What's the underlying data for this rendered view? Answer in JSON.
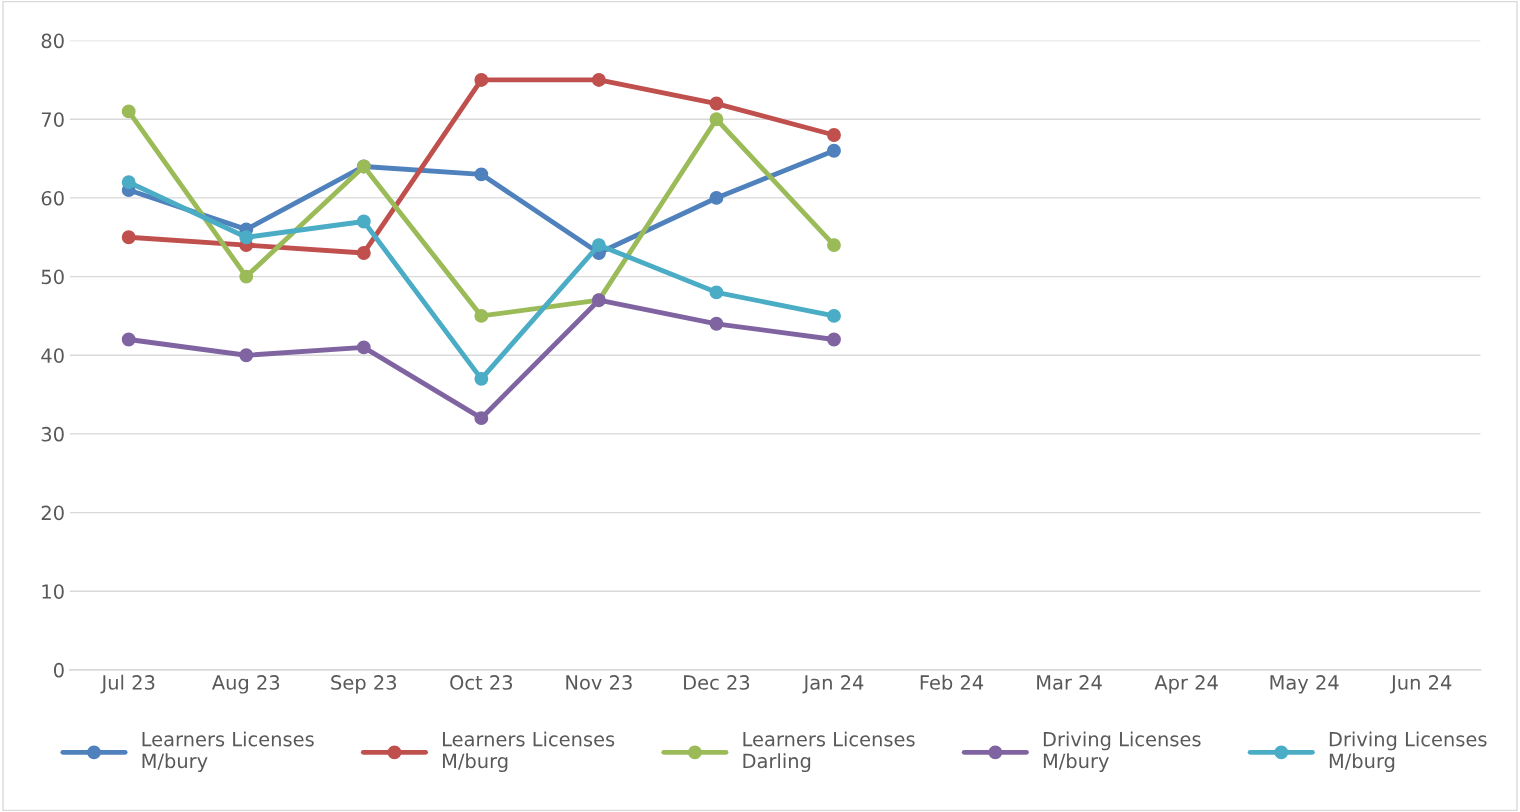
{
  "chart_data": {
    "type": "line",
    "categories": [
      "Jul 23",
      "Aug 23",
      "Sep 23",
      "Oct 23",
      "Nov 23",
      "Dec 23",
      "Jan 24",
      "Feb 24",
      "Mar 24",
      "Apr 24",
      "May 24",
      "Jun 24"
    ],
    "series": [
      {
        "name": "Learners Licenses\nM/bury",
        "color": "#4f81bd",
        "values": [
          61,
          56,
          64,
          63,
          53,
          60,
          66,
          null,
          null,
          null,
          null,
          null
        ]
      },
      {
        "name": "Learners Licenses\nM/burg",
        "color": "#c0504d",
        "values": [
          55,
          54,
          53,
          75,
          75,
          72,
          68,
          null,
          null,
          null,
          null,
          null
        ]
      },
      {
        "name": "Learners Licenses\nDarling",
        "color": "#9bbb59",
        "values": [
          71,
          50,
          64,
          45,
          47,
          70,
          54,
          null,
          null,
          null,
          null,
          null
        ]
      },
      {
        "name": "Driving Licenses\nM/bury",
        "color": "#8064a2",
        "values": [
          42,
          40,
          41,
          32,
          47,
          44,
          42,
          null,
          null,
          null,
          null,
          null
        ]
      },
      {
        "name": "Driving Licenses\nM/burg",
        "color": "#4bacc6",
        "values": [
          62,
          55,
          57,
          37,
          54,
          48,
          45,
          null,
          null,
          null,
          null,
          null
        ]
      }
    ],
    "ylim": [
      0,
      80
    ],
    "yticks": [
      0,
      10,
      20,
      30,
      40,
      50,
      60,
      70,
      80
    ],
    "grid": "y",
    "legend": "bottom",
    "marker": "circle",
    "line_style": "solid"
  }
}
